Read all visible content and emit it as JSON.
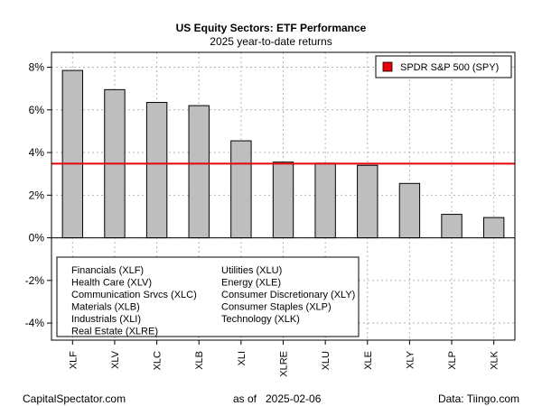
{
  "chart_data": {
    "type": "bar",
    "title": "US Equity Sectors: ETF Performance",
    "subtitle": "2025 year-to-date returns",
    "categories": [
      "XLF",
      "XLV",
      "XLC",
      "XLB",
      "XLI",
      "XLRE",
      "XLU",
      "XLE",
      "XLY",
      "XLP",
      "XLK"
    ],
    "values": [
      7.85,
      6.95,
      6.35,
      6.2,
      4.55,
      3.55,
      3.5,
      3.4,
      2.55,
      1.1,
      0.95
    ],
    "ylim": [
      -4.8,
      8.7
    ],
    "yticks": [
      -4,
      -2,
      0,
      2,
      4,
      6,
      8
    ],
    "ytick_labels": [
      "-4%",
      "-2%",
      "0%",
      "2%",
      "4%",
      "6%",
      "8%"
    ],
    "grid": true,
    "bar_color": "#bebebe",
    "reference_line": {
      "name": "SPDR S&P 500 (SPY)",
      "value": 3.48,
      "color": "#e8000b"
    },
    "legend_position": "top-right",
    "sector_key": [
      "Financials (XLF)",
      "Health Care (XLV)",
      "Communication Srvcs (XLC)",
      "Materials (XLB)",
      "Industrials (XLI)",
      "Real Estate (XLRE)",
      "Utilities (XLU)",
      "Energy (XLE)",
      "Consumer Discretionary (XLY)",
      "Consumer Staples (XLP)",
      "Technology (XLK)"
    ]
  },
  "footer": {
    "source_site": "CapitalSpectator.com",
    "as_of_label": "as of",
    "as_of_date": "2025-02-06",
    "data_source": "Data: Tiingo.com"
  }
}
